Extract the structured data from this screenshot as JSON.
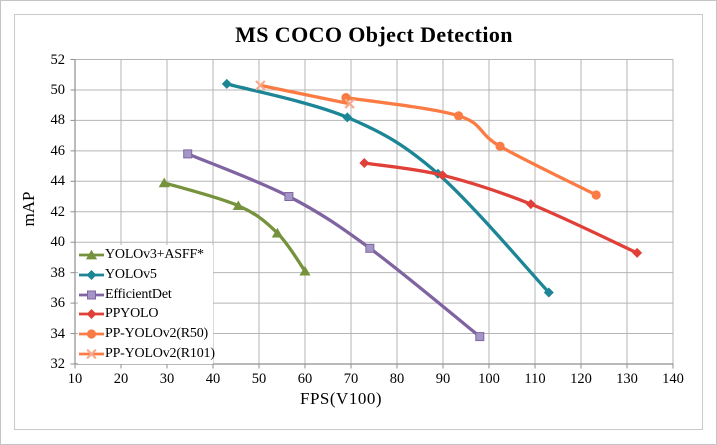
{
  "window": {
    "background": "#ffffff",
    "figure_border_color": "#c9c9c9",
    "grid_color": "#b5b5b5",
    "axis_color": "#8f8f8f",
    "text_color": "#000000"
  },
  "chart_data": {
    "type": "line",
    "title": "MS COCO Object Detection",
    "xlabel": "FPS(V100)",
    "ylabel": "mAP",
    "xlim": [
      10,
      140
    ],
    "ylim": [
      32,
      52
    ],
    "x_ticks": [
      10,
      20,
      30,
      40,
      50,
      60,
      70,
      80,
      90,
      100,
      110,
      120,
      130,
      140
    ],
    "y_ticks": [
      32,
      34,
      36,
      38,
      40,
      42,
      44,
      46,
      48,
      50,
      52
    ],
    "grid": true,
    "legend_position": "bottom-left",
    "series": [
      {
        "name": "YOLOv3+ASFF*",
        "color": "#76923C",
        "marker": "triangle",
        "marker_color": "#76923C",
        "points": [
          [
            29.4,
            43.9
          ],
          [
            45.5,
            42.4
          ],
          [
            54,
            40.6
          ],
          [
            60,
            38.1
          ]
        ]
      },
      {
        "name": "YOLOv5",
        "color": "#1C8596",
        "marker": "diamond",
        "marker_color": "#1C8596",
        "points": [
          [
            43,
            50.4
          ],
          [
            69.2,
            48.2
          ],
          [
            88.9,
            44.5
          ],
          [
            113,
            36.7
          ]
        ]
      },
      {
        "name": "EfficientDet",
        "color": "#8064A2",
        "marker": "square",
        "marker_color": "#A396C6",
        "points": [
          [
            34.5,
            45.8
          ],
          [
            56.5,
            43.0
          ],
          [
            74.1,
            39.6
          ],
          [
            98,
            33.8
          ]
        ]
      },
      {
        "name": "PPYOLO",
        "color": "#E04038",
        "marker": "diamond",
        "marker_color": "#E04038",
        "points": [
          [
            72.9,
            45.2
          ],
          [
            89.9,
            44.4
          ],
          [
            109.1,
            42.5
          ],
          [
            132.2,
            39.3
          ]
        ]
      },
      {
        "name": "PP-YOLOv2(R50)",
        "color": "#FA7C44",
        "marker": "circle",
        "marker_color": "#FA7C44",
        "points": [
          [
            68.9,
            49.5
          ],
          [
            93.4,
            48.3
          ],
          [
            102.4,
            46.3
          ],
          [
            123.3,
            43.1
          ]
        ]
      },
      {
        "name": "PP-YOLOv2(R101)",
        "color": "#FA7C44",
        "marker": "x",
        "marker_color": "#F7A98B",
        "points": [
          [
            50.3,
            50.3
          ],
          [
            69.7,
            49.1
          ]
        ]
      }
    ]
  }
}
